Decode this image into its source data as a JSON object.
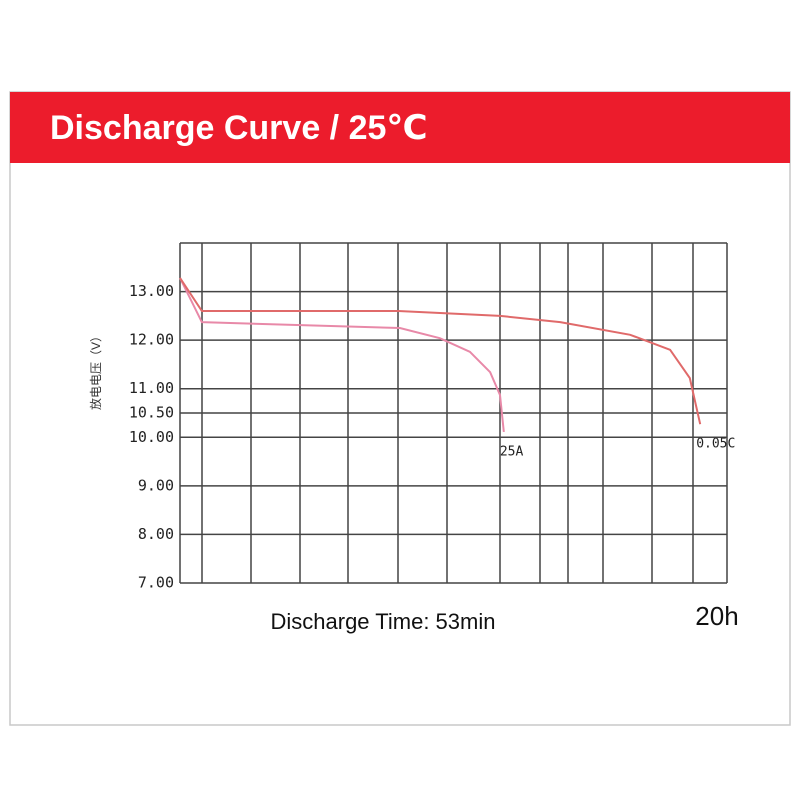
{
  "chart_data": {
    "type": "line",
    "title": "Discharge Curve / 25℃",
    "ylabel": "放电电压（V）",
    "xlabel": "Discharge Time: 53min",
    "annotation": "20h",
    "ylim": [
      7,
      14
    ],
    "yticks": [
      {
        "value": 7,
        "label": "7.00"
      },
      {
        "value": 8,
        "label": "8.00"
      },
      {
        "value": 9,
        "label": "9.00"
      },
      {
        "value": 10,
        "label": "10.00"
      },
      {
        "value": 10.5,
        "label": "10.50"
      },
      {
        "value": 11,
        "label": "11.00"
      },
      {
        "value": 12,
        "label": "12.00"
      },
      {
        "value": 13,
        "label": "13.00"
      }
    ],
    "xlim": [
      0,
      100
    ],
    "grid": true,
    "series": [
      {
        "name": "25A",
        "color": "#e889a8",
        "x": [
          0,
          4.0,
          40.2,
          47.5,
          53.0,
          56.7,
          58.5,
          59.2
        ],
        "values": [
          13.28,
          12.37,
          12.25,
          12.04,
          11.76,
          11.34,
          10.87,
          10.11
        ]
      },
      {
        "name": "0.05C",
        "color": "#e06a6a",
        "x": [
          0,
          4.0,
          39.9,
          58.5,
          69.5,
          82.3,
          89.6,
          93.2,
          95.1
        ],
        "values": [
          13.28,
          12.6,
          12.6,
          12.5,
          12.37,
          12.11,
          11.8,
          11.22,
          10.27
        ]
      }
    ]
  }
}
